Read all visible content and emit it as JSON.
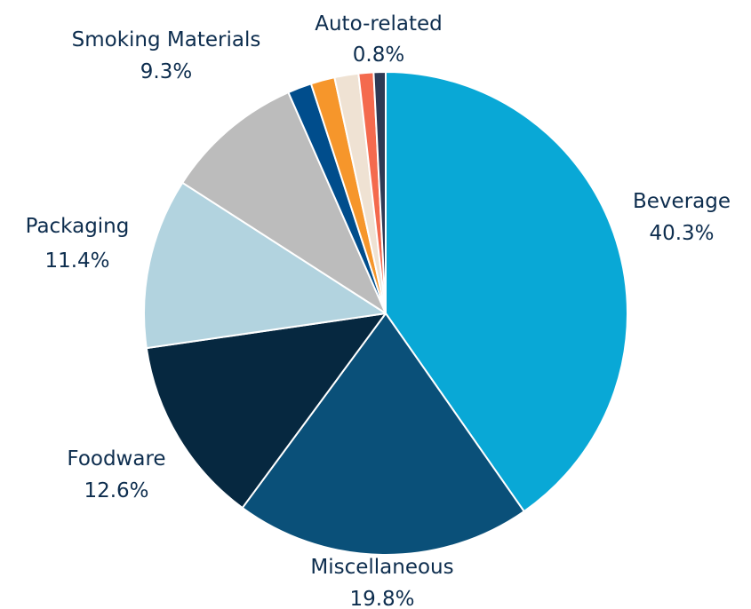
{
  "chart_data": {
    "type": "pie",
    "title": "",
    "slices": [
      {
        "label": "Beverage",
        "value": 40.3,
        "value_label": "40.3%",
        "color": "#09a8d6"
      },
      {
        "label": "Miscellaneous",
        "value": 19.8,
        "value_label": "19.8%",
        "color": "#0a5079"
      },
      {
        "label": "Foodware",
        "value": 12.6,
        "value_label": "12.6%",
        "color": "#062840"
      },
      {
        "label": "Packaging",
        "value": 11.4,
        "value_label": "11.4%",
        "color": "#b2d3df"
      },
      {
        "label": "Smoking Materials",
        "value": 9.3,
        "value_label": "9.3%",
        "color": "#bcbcbc"
      },
      {
        "label": "",
        "value": 1.6,
        "value_label": "",
        "color": "#004d8c"
      },
      {
        "label": "",
        "value": 1.6,
        "value_label": "",
        "color": "#f6962b"
      },
      {
        "label": "",
        "value": 1.6,
        "value_label": "",
        "color": "#efe2d3"
      },
      {
        "label": "",
        "value": 1.0,
        "value_label": "",
        "color": "#f46a4e"
      },
      {
        "label": "Auto-related",
        "value": 0.8,
        "value_label": "0.8%",
        "color": "#2e3a55"
      }
    ],
    "start_angle_deg": 0,
    "direction": "clockwise"
  }
}
